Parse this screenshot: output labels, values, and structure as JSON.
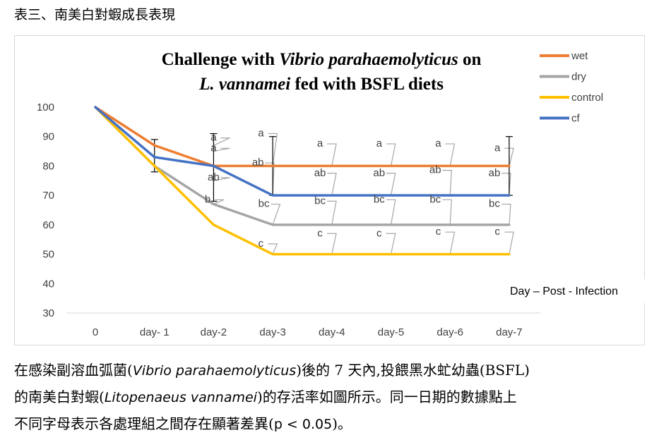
{
  "heading": "表三、南美白對蝦成長表現",
  "chart_data": {
    "type": "line",
    "title_line1_a": "Challenge with ",
    "title_line1_b": "Vibrio parahaemolyticus",
    "title_line1_c": " on",
    "title_line2_a": "L. vannamei",
    "title_line2_b": " fed with BSFL diets",
    "xlabel": "Day – Post - Infection",
    "categories": [
      "0",
      "day- 1",
      "day-2",
      "day-3",
      "day-4",
      "day-5",
      "day-6",
      "day-7"
    ],
    "ylim": [
      30,
      100
    ],
    "yticks": [
      30,
      40,
      50,
      60,
      70,
      80,
      90,
      100
    ],
    "legend_position": "top-right",
    "grid": false,
    "series": [
      {
        "name": "wet",
        "color": "#ED7D31",
        "values": [
          100,
          87,
          80,
          80,
          80,
          80,
          80,
          80
        ]
      },
      {
        "name": "dry",
        "color": "#A5A5A5",
        "values": [
          100,
          80,
          67,
          60,
          60,
          60,
          60,
          60
        ]
      },
      {
        "name": "control",
        "color": "#FFC000",
        "values": [
          100,
          80,
          60,
          50,
          50,
          50,
          50,
          50
        ]
      },
      {
        "name": "cf",
        "color": "#4472C4",
        "values": [
          100,
          83,
          80,
          70,
          70,
          70,
          70,
          70
        ]
      }
    ],
    "error_bars": [
      {
        "x": 1,
        "low": 78,
        "high": 89
      },
      {
        "x": 2,
        "low": 68,
        "high": 91
      },
      {
        "x": 3,
        "low": 70,
        "high": 90
      },
      {
        "x": 7,
        "low": 70,
        "high": 90
      }
    ],
    "annotations": [
      {
        "text": "a",
        "x": 2.0,
        "y": 90,
        "lx": 2.0,
        "ly": 87
      },
      {
        "text": "a",
        "x": 2.0,
        "y": 86.5,
        "lx": 2.0,
        "ly": 85
      },
      {
        "text": "ab",
        "x": 2.0,
        "y": 76.5,
        "lx": 2.0,
        "ly": 75
      },
      {
        "text": "b",
        "x": 1.9,
        "y": 69,
        "lx": 2.0,
        "ly": 67
      },
      {
        "text": "a",
        "x": 2.8,
        "y": 91.5,
        "lx": 3.0,
        "ly": 80
      },
      {
        "text": "ab",
        "x": 2.75,
        "y": 81.5,
        "lx": 3.0,
        "ly": 70
      },
      {
        "text": "bc",
        "x": 2.85,
        "y": 67.5,
        "lx": 3.0,
        "ly": 60
      },
      {
        "text": "c",
        "x": 2.8,
        "y": 54,
        "lx": 3.0,
        "ly": 50
      },
      {
        "text": "a",
        "x": 3.8,
        "y": 88,
        "lx": 4.0,
        "ly": 80
      },
      {
        "text": "ab",
        "x": 3.8,
        "y": 78,
        "lx": 4.0,
        "ly": 70
      },
      {
        "text": "bc",
        "x": 3.8,
        "y": 68.5,
        "lx": 4.0,
        "ly": 60
      },
      {
        "text": "c",
        "x": 3.8,
        "y": 57.5,
        "lx": 4.0,
        "ly": 50
      },
      {
        "text": "a",
        "x": 4.8,
        "y": 88,
        "lx": 5.0,
        "ly": 80
      },
      {
        "text": "ab",
        "x": 4.8,
        "y": 78,
        "lx": 5.0,
        "ly": 70
      },
      {
        "text": "bc",
        "x": 4.8,
        "y": 69,
        "lx": 5.0,
        "ly": 60
      },
      {
        "text": "c",
        "x": 4.8,
        "y": 57.5,
        "lx": 5.0,
        "ly": 50
      },
      {
        "text": "a",
        "x": 5.8,
        "y": 88,
        "lx": 6.0,
        "ly": 80
      },
      {
        "text": "ab",
        "x": 5.75,
        "y": 79,
        "lx": 6.0,
        "ly": 70
      },
      {
        "text": "bc",
        "x": 5.75,
        "y": 69,
        "lx": 6.0,
        "ly": 60
      },
      {
        "text": "c",
        "x": 5.8,
        "y": 58,
        "lx": 6.0,
        "ly": 50
      },
      {
        "text": "a",
        "x": 6.8,
        "y": 86.5,
        "lx": 7.0,
        "ly": 80
      },
      {
        "text": "ab",
        "x": 6.75,
        "y": 78,
        "lx": 7.0,
        "ly": 70
      },
      {
        "text": "bc",
        "x": 6.75,
        "y": 67.5,
        "lx": 7.0,
        "ly": 60
      },
      {
        "text": "c",
        "x": 6.8,
        "y": 58,
        "lx": 7.0,
        "ly": 50
      }
    ]
  },
  "caption": {
    "line1_a": "在感染副溶血弧菌(",
    "line1_b": "Vibrio parahaemolyticus",
    "line1_c": ")後的 7 天內,投餵黑水虻幼蟲(BSFL)",
    "line2_a": "的南美白對蝦(",
    "line2_b": "Litopenaeus vannamei",
    "line2_c": ")的存活率如圖所示。同一日期的數據點上",
    "line3_a": "不同字母表示各處理組之間存在顯著差異(",
    "line3_b": "p < 0.05",
    "line3_c": ")。"
  }
}
